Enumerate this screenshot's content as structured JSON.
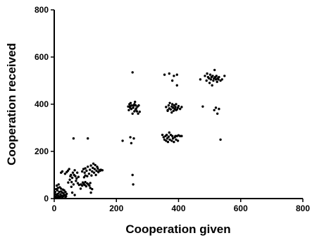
{
  "chart_data": {
    "type": "scatter",
    "xlabel": "Cooperation given",
    "ylabel": "Cooperation received",
    "xlim": [
      0,
      800
    ],
    "ylim": [
      0,
      800
    ],
    "xticks": [
      0,
      200,
      400,
      600,
      800
    ],
    "yticks": [
      0,
      200,
      400,
      600,
      800
    ],
    "grid": false,
    "marker_color": "#000000",
    "points": [
      [
        2,
        2
      ],
      [
        4,
        8
      ],
      [
        6,
        3
      ],
      [
        8,
        15
      ],
      [
        10,
        5
      ],
      [
        12,
        20
      ],
      [
        14,
        10
      ],
      [
        16,
        28
      ],
      [
        18,
        6
      ],
      [
        20,
        18
      ],
      [
        22,
        30
      ],
      [
        24,
        12
      ],
      [
        26,
        25
      ],
      [
        28,
        8
      ],
      [
        30,
        22
      ],
      [
        32,
        35
      ],
      [
        34,
        15
      ],
      [
        36,
        28
      ],
      [
        38,
        10
      ],
      [
        40,
        20
      ],
      [
        6,
        40
      ],
      [
        8,
        55
      ],
      [
        12,
        45
      ],
      [
        14,
        60
      ],
      [
        18,
        48
      ],
      [
        10,
        35
      ],
      [
        20,
        8
      ],
      [
        26,
        2
      ],
      [
        30,
        12
      ],
      [
        3,
        28
      ],
      [
        5,
        18
      ],
      [
        15,
        3
      ],
      [
        28,
        38
      ],
      [
        22,
        42
      ],
      [
        36,
        5
      ],
      [
        22,
        110
      ],
      [
        26,
        115
      ],
      [
        35,
        105
      ],
      [
        40,
        112
      ],
      [
        44,
        118
      ],
      [
        50,
        80
      ],
      [
        52,
        95
      ],
      [
        54,
        100
      ],
      [
        56,
        70
      ],
      [
        58,
        88
      ],
      [
        60,
        110
      ],
      [
        62,
        60
      ],
      [
        64,
        100
      ],
      [
        66,
        120
      ],
      [
        68,
        95
      ],
      [
        70,
        75
      ],
      [
        72,
        85
      ],
      [
        74,
        110
      ],
      [
        76,
        65
      ],
      [
        78,
        92
      ],
      [
        80,
        58
      ],
      [
        62,
        255
      ],
      [
        108,
        255
      ],
      [
        86,
        60
      ],
      [
        90,
        55
      ],
      [
        92,
        68
      ],
      [
        95,
        62
      ],
      [
        98,
        58
      ],
      [
        100,
        70
      ],
      [
        103,
        52
      ],
      [
        106,
        64
      ],
      [
        110,
        60
      ],
      [
        113,
        55
      ],
      [
        116,
        66
      ],
      [
        90,
        115
      ],
      [
        94,
        125
      ],
      [
        98,
        110
      ],
      [
        100,
        128
      ],
      [
        104,
        118
      ],
      [
        108,
        135
      ],
      [
        112,
        105
      ],
      [
        115,
        122
      ],
      [
        118,
        140
      ],
      [
        120,
        98
      ],
      [
        122,
        115
      ],
      [
        124,
        130
      ],
      [
        126,
        148
      ],
      [
        128,
        110
      ],
      [
        130,
        125
      ],
      [
        132,
        142
      ],
      [
        134,
        100
      ],
      [
        136,
        118
      ],
      [
        138,
        135
      ],
      [
        140,
        128
      ],
      [
        142,
        112
      ],
      [
        145,
        120
      ],
      [
        148,
        118
      ],
      [
        150,
        122
      ],
      [
        155,
        120
      ],
      [
        116,
        45
      ],
      [
        118,
        25
      ],
      [
        122,
        40
      ],
      [
        96,
        90
      ],
      [
        100,
        98
      ],
      [
        106,
        95
      ],
      [
        85,
        42
      ],
      [
        55,
        50
      ],
      [
        58,
        25
      ],
      [
        66,
        15
      ],
      [
        45,
        68
      ],
      [
        48,
        125
      ],
      [
        220,
        245
      ],
      [
        245,
        260
      ],
      [
        248,
        235
      ],
      [
        252,
        535
      ],
      [
        252,
        100
      ],
      [
        254,
        60
      ],
      [
        256,
        255
      ],
      [
        238,
        390
      ],
      [
        240,
        375
      ],
      [
        242,
        400
      ],
      [
        244,
        385
      ],
      [
        246,
        405
      ],
      [
        248,
        380
      ],
      [
        250,
        395
      ],
      [
        252,
        360
      ],
      [
        254,
        385
      ],
      [
        256,
        395
      ],
      [
        258,
        400
      ],
      [
        260,
        410
      ],
      [
        262,
        378
      ],
      [
        264,
        382
      ],
      [
        266,
        370
      ],
      [
        268,
        390
      ],
      [
        270,
        360
      ],
      [
        272,
        395
      ],
      [
        275,
        368
      ],
      [
        245,
        392
      ],
      [
        258,
        370
      ],
      [
        262,
        395
      ],
      [
        348,
        270
      ],
      [
        352,
        260
      ],
      [
        355,
        250
      ],
      [
        358,
        265
      ],
      [
        360,
        245
      ],
      [
        362,
        270
      ],
      [
        364,
        255
      ],
      [
        366,
        240
      ],
      [
        368,
        262
      ],
      [
        370,
        280
      ],
      [
        372,
        250
      ],
      [
        375,
        270
      ],
      [
        378,
        245
      ],
      [
        380,
        265
      ],
      [
        382,
        255
      ],
      [
        385,
        240
      ],
      [
        388,
        260
      ],
      [
        390,
        265
      ],
      [
        392,
        250
      ],
      [
        395,
        265
      ],
      [
        398,
        245
      ],
      [
        400,
        268
      ],
      [
        405,
        265
      ],
      [
        410,
        265
      ],
      [
        355,
        525
      ],
      [
        370,
        530
      ],
      [
        385,
        520
      ],
      [
        395,
        525
      ],
      [
        380,
        500
      ],
      [
        395,
        480
      ],
      [
        360,
        388
      ],
      [
        365,
        375
      ],
      [
        368,
        395
      ],
      [
        370,
        382
      ],
      [
        372,
        405
      ],
      [
        375,
        378
      ],
      [
        378,
        390
      ],
      [
        380,
        400
      ],
      [
        382,
        385
      ],
      [
        384,
        372
      ],
      [
        386,
        395
      ],
      [
        388,
        380
      ],
      [
        390,
        388
      ],
      [
        392,
        400
      ],
      [
        395,
        378
      ],
      [
        398,
        385
      ],
      [
        400,
        392
      ],
      [
        405,
        380
      ],
      [
        410,
        388
      ],
      [
        365,
        372
      ],
      [
        378,
        365
      ],
      [
        392,
        375
      ],
      [
        470,
        505
      ],
      [
        478,
        390
      ],
      [
        485,
        520
      ],
      [
        490,
        500
      ],
      [
        492,
        530
      ],
      [
        495,
        515
      ],
      [
        498,
        510
      ],
      [
        500,
        490
      ],
      [
        502,
        525
      ],
      [
        504,
        505
      ],
      [
        506,
        515
      ],
      [
        508,
        480
      ],
      [
        510,
        520
      ],
      [
        512,
        500
      ],
      [
        514,
        510
      ],
      [
        516,
        545
      ],
      [
        518,
        515
      ],
      [
        520,
        505
      ],
      [
        522,
        520
      ],
      [
        524,
        495
      ],
      [
        526,
        510
      ],
      [
        528,
        505
      ],
      [
        530,
        515
      ],
      [
        535,
        500
      ],
      [
        540,
        505
      ],
      [
        548,
        520
      ],
      [
        515,
        375
      ],
      [
        520,
        385
      ],
      [
        525,
        360
      ],
      [
        530,
        380
      ],
      [
        535,
        250
      ]
    ]
  }
}
